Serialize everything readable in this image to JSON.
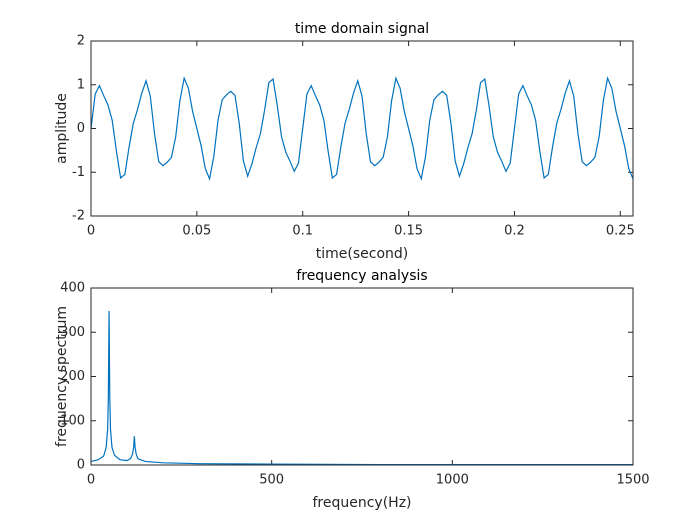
{
  "chart_data": [
    {
      "type": "line",
      "title": "time domain signal",
      "x_label": "time(second)",
      "y_label": "amplitude",
      "color": "#0072bd",
      "x": [
        0,
        0.002,
        0.004,
        0.006,
        0.008,
        0.01,
        0.012,
        0.014,
        0.016,
        0.018,
        0.02,
        0.022,
        0.024,
        0.026,
        0.028,
        0.03,
        0.032,
        0.034,
        0.036,
        0.038,
        0.04,
        0.042,
        0.044,
        0.046,
        0.048,
        0.05,
        0.052,
        0.054,
        0.056,
        0.058,
        0.06,
        0.062,
        0.064,
        0.066,
        0.068,
        0.07,
        0.072,
        0.074,
        0.076,
        0.078,
        0.08,
        0.082,
        0.084,
        0.086,
        0.088,
        0.09,
        0.092,
        0.094,
        0.096,
        0.098,
        0.1,
        0.102,
        0.104,
        0.106,
        0.108,
        0.11,
        0.112,
        0.114,
        0.116,
        0.118,
        0.12,
        0.122,
        0.124,
        0.126,
        0.128,
        0.13,
        0.132,
        0.134,
        0.136,
        0.138,
        0.14,
        0.142,
        0.144,
        0.146,
        0.148,
        0.15,
        0.152,
        0.154,
        0.156,
        0.158,
        0.16,
        0.162,
        0.164,
        0.166,
        0.168,
        0.17,
        0.172,
        0.174,
        0.176,
        0.178,
        0.18,
        0.182,
        0.184,
        0.186,
        0.188,
        0.19,
        0.192,
        0.194,
        0.196,
        0.198,
        0.2,
        0.202,
        0.204,
        0.206,
        0.208,
        0.21,
        0.212,
        0.214,
        0.216,
        0.218,
        0.22,
        0.222,
        0.224,
        0.226,
        0.228,
        0.23,
        0.232,
        0.234,
        0.236,
        0.238,
        0.24,
        0.242,
        0.244,
        0.246,
        0.248,
        0.25,
        0.252,
        0.254,
        0.256
      ],
      "values": [
        0,
        0.79,
        0.98,
        0.75,
        0.54,
        0.19,
        -0.52,
        -1.13,
        -1.05,
        -0.42,
        0.12,
        0.44,
        0.81,
        1.09,
        0.74,
        -0.12,
        -0.76,
        -0.85,
        -0.77,
        -0.66,
        -0.19,
        0.64,
        1.15,
        0.92,
        0.39,
        0,
        -0.39,
        -0.92,
        -1.15,
        -0.64,
        0.19,
        0.66,
        0.77,
        0.85,
        0.76,
        0.12,
        -0.74,
        -1.09,
        -0.81,
        -0.44,
        -0.12,
        0.42,
        1.05,
        1.13,
        0.52,
        -0.19,
        -0.54,
        -0.75,
        -0.98,
        -0.79,
        0,
        0.79,
        0.98,
        0.75,
        0.54,
        0.19,
        -0.52,
        -1.13,
        -1.05,
        -0.42,
        0.12,
        0.44,
        0.81,
        1.09,
        0.74,
        -0.12,
        -0.76,
        -0.85,
        -0.77,
        -0.66,
        -0.19,
        0.64,
        1.15,
        0.92,
        0.39,
        0,
        -0.39,
        -0.92,
        -1.15,
        -0.64,
        0.19,
        0.66,
        0.77,
        0.85,
        0.76,
        0.12,
        -0.74,
        -1.09,
        -0.81,
        -0.44,
        -0.12,
        0.42,
        1.05,
        1.13,
        0.52,
        -0.19,
        -0.54,
        -0.75,
        -0.98,
        -0.79,
        0,
        0.79,
        0.98,
        0.75,
        0.54,
        0.19,
        -0.52,
        -1.13,
        -1.05,
        -0.42,
        0.12,
        0.44,
        0.81,
        1.09,
        0.74,
        -0.12,
        -0.76,
        -0.85,
        -0.77,
        -0.66,
        -0.19,
        0.64,
        1.15,
        0.92,
        0.39,
        0,
        -0.39,
        -0.92,
        -1.15
      ],
      "xlim": [
        0,
        0.256
      ],
      "xticks": [
        0,
        0.05,
        0.1,
        0.15,
        0.2,
        0.25
      ],
      "ylim": [
        -2,
        2
      ],
      "yticks": [
        -2,
        -1,
        0,
        1,
        2
      ]
    },
    {
      "type": "line",
      "title": "frequency analysis",
      "x_label": "frequency(Hz)",
      "y_label": "frequency spectrum",
      "color": "#0072bd",
      "x": [
        0,
        20,
        35,
        42,
        46,
        48,
        50,
        52,
        54,
        58,
        65,
        80,
        100,
        110,
        115,
        118,
        120,
        122,
        125,
        130,
        150,
        200,
        300,
        500,
        800,
        1000,
        1500
      ],
      "values": [
        8,
        12,
        20,
        40,
        80,
        150,
        348,
        150,
        80,
        40,
        22,
        12,
        10,
        15,
        25,
        40,
        65,
        40,
        25,
        14,
        8,
        5,
        3,
        2,
        1,
        1,
        1
      ],
      "xlim": [
        0,
        1500
      ],
      "xticks": [
        0,
        500,
        1000,
        1500
      ],
      "ylim": [
        0,
        400
      ],
      "yticks": [
        0,
        100,
        200,
        300,
        400
      ]
    }
  ]
}
